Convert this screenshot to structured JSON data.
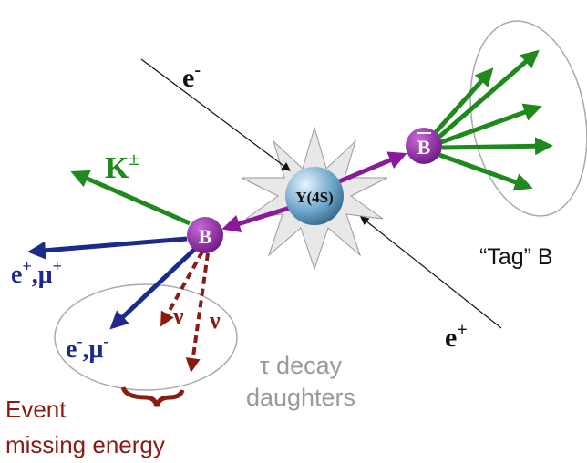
{
  "beams": [
    {
      "base": "e",
      "sup": "-"
    },
    {
      "base": "e",
      "sup": "+"
    }
  ],
  "nodes": {
    "upsilon": "Υ(4S)",
    "b_bar": "B",
    "b": "B"
  },
  "kaon": {
    "base": "K",
    "sup": "±"
  },
  "leptons": [
    {
      "parts": [
        {
          "base": "e",
          "sup": "+"
        },
        {
          "base": ",μ",
          "sup": "+"
        }
      ]
    },
    {
      "parts": [
        {
          "base": "e",
          "sup": "-"
        },
        {
          "base": ",μ",
          "sup": "-"
        }
      ]
    }
  ],
  "neutrinos": [
    "ν",
    "ν"
  ],
  "tag_label": "“Tag” B",
  "tau_label": [
    "τ decay",
    "daughters"
  ],
  "missing_label": [
    "Event",
    "missing energy"
  ]
}
